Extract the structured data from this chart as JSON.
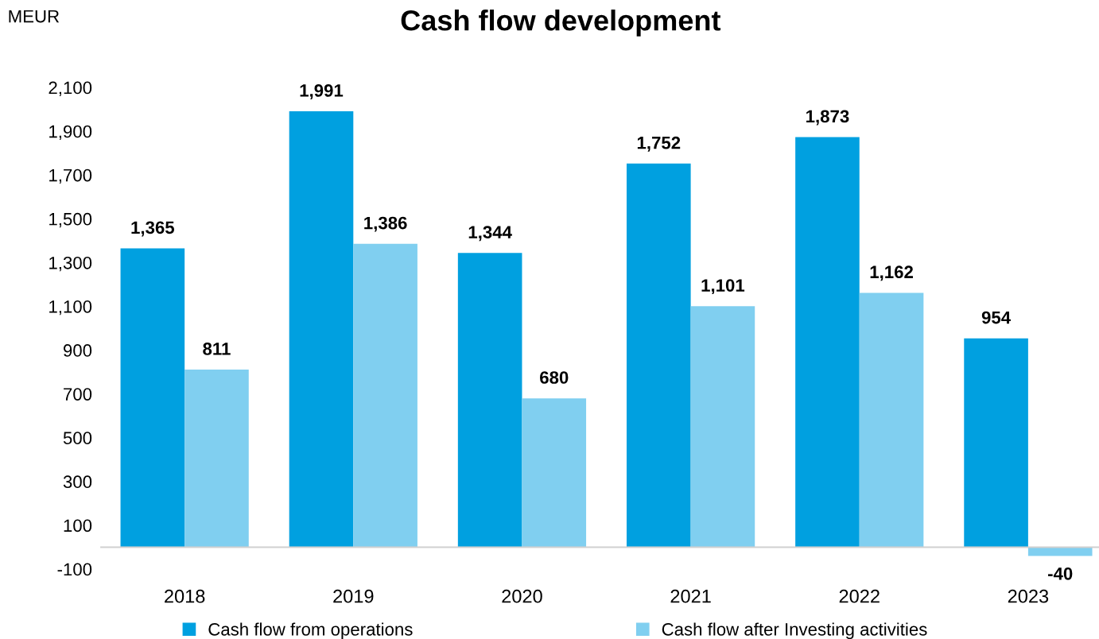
{
  "chart_data": {
    "type": "bar",
    "title": "Cash flow development",
    "ylabel": "MEUR",
    "categories": [
      "2018",
      "2019",
      "2020",
      "2021",
      "2022",
      "2023"
    ],
    "series": [
      {
        "name": "Cash flow from operations",
        "color": "#00a0e0",
        "values": [
          1365,
          1991,
          1344,
          1752,
          1873,
          954
        ]
      },
      {
        "name": "Cash flow after Investing activities",
        "color": "#80cff0",
        "values": [
          811,
          1386,
          680,
          1101,
          1162,
          -40
        ]
      }
    ],
    "ylim": [
      -100,
      2100
    ],
    "yticks": [
      {
        "value": -100,
        "label": "-100"
      },
      100,
      300,
      500,
      700,
      900,
      {
        "value": 1100,
        "label": "1,100"
      },
      {
        "value": 1300,
        "label": "1,300"
      },
      {
        "value": 1500,
        "label": "1,500"
      },
      {
        "value": 1700,
        "label": "1,700"
      },
      {
        "value": 1900,
        "label": "1,900"
      },
      {
        "value": 2100,
        "label": "2,100"
      }
    ],
    "value_labels": [
      [
        "1,365",
        "1,991",
        "1,344",
        "1,752",
        "1,873",
        "954"
      ],
      [
        "811",
        "1,386",
        "680",
        "1,101",
        "1,162",
        "-40"
      ]
    ],
    "grid": false,
    "legend": "bottom"
  }
}
